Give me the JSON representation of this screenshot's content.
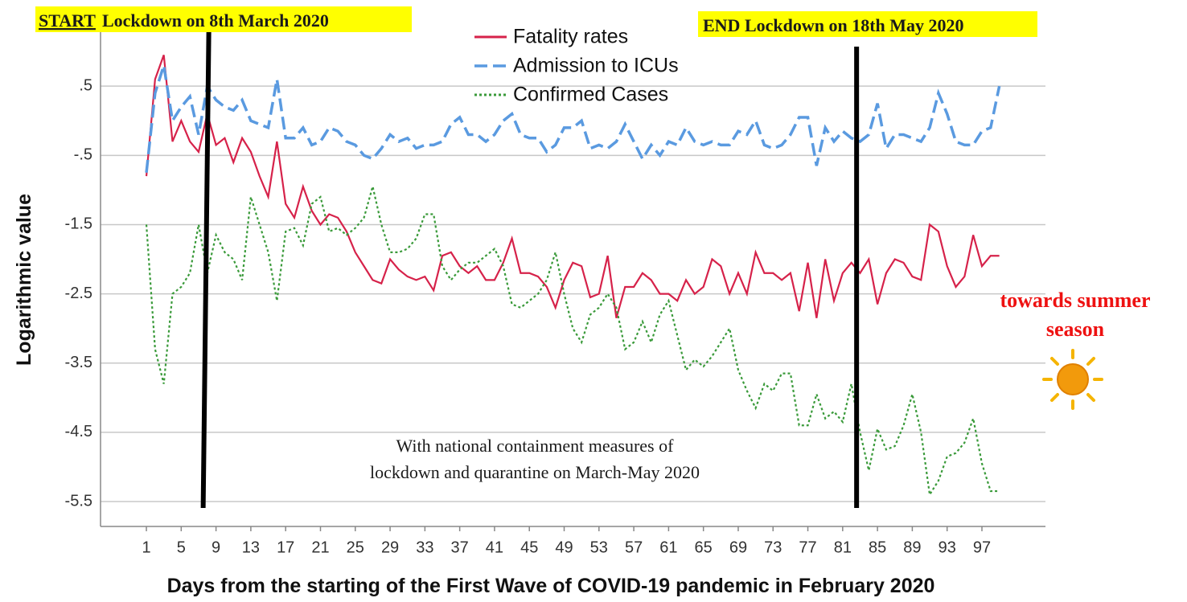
{
  "chart_data": {
    "type": "line",
    "ylabel": "Logarithmic value",
    "xlabel": "Days from the starting of the First Wave of COVID-19 pandemic in February 2020",
    "x": [
      1,
      2,
      3,
      4,
      5,
      6,
      7,
      8,
      9,
      10,
      11,
      12,
      13,
      14,
      15,
      16,
      17,
      18,
      19,
      20,
      21,
      22,
      23,
      24,
      25,
      26,
      27,
      28,
      29,
      30,
      31,
      32,
      33,
      34,
      35,
      36,
      37,
      38,
      39,
      40,
      41,
      42,
      43,
      44,
      45,
      46,
      47,
      48,
      49,
      50,
      51,
      52,
      53,
      54,
      55,
      56,
      57,
      58,
      59,
      60,
      61,
      62,
      63,
      64,
      65,
      66,
      67,
      68,
      69,
      70,
      71,
      72,
      73,
      74,
      75,
      76,
      77,
      78,
      79,
      80,
      81,
      82,
      83,
      84,
      85,
      86,
      87,
      88,
      89,
      90,
      91,
      92,
      93,
      94,
      95,
      96,
      97,
      98,
      99
    ],
    "series": [
      {
        "name": "Fatality rates",
        "color": "#d6224a",
        "style": "solid",
        "values": [
          -0.8,
          0.6,
          0.95,
          -0.3,
          0.0,
          -0.3,
          -0.45,
          0.1,
          -0.35,
          -0.25,
          -0.6,
          -0.25,
          -0.45,
          -0.8,
          -1.1,
          -0.3,
          -1.2,
          -1.4,
          -0.95,
          -1.3,
          -1.5,
          -1.35,
          -1.4,
          -1.6,
          -1.9,
          -2.1,
          -2.3,
          -2.35,
          -2.0,
          -2.15,
          -2.25,
          -2.3,
          -2.25,
          -2.45,
          -1.95,
          -1.9,
          -2.1,
          -2.2,
          -2.1,
          -2.3,
          -2.3,
          -2.05,
          -1.7,
          -2.2,
          -2.2,
          -2.25,
          -2.4,
          -2.7,
          -2.3,
          -2.05,
          -2.1,
          -2.55,
          -2.5,
          -1.95,
          -2.85,
          -2.4,
          -2.4,
          -2.2,
          -2.3,
          -2.5,
          -2.5,
          -2.6,
          -2.3,
          -2.5,
          -2.4,
          -2.0,
          -2.1,
          -2.5,
          -2.2,
          -2.5,
          -1.9,
          -2.2,
          -2.2,
          -2.3,
          -2.2,
          -2.75,
          -2.05,
          -2.85,
          -2.0,
          -2.6,
          -2.2,
          -2.05,
          -2.2,
          -2.0,
          -2.65,
          -2.2,
          -2.0,
          -2.05,
          -2.25,
          -2.3,
          -1.5,
          -1.6,
          -2.1,
          -2.4,
          -2.25,
          -1.65,
          -2.1,
          -1.95,
          -1.95
        ]
      },
      {
        "name": "Admission to ICUs",
        "color": "#5a9ae0",
        "style": "dashed",
        "values": [
          -0.75,
          0.4,
          0.8,
          0.0,
          0.2,
          0.35,
          -0.2,
          0.5,
          0.3,
          0.2,
          0.15,
          0.3,
          0.0,
          -0.05,
          -0.1,
          0.6,
          -0.25,
          -0.25,
          -0.1,
          -0.35,
          -0.3,
          -0.1,
          -0.15,
          -0.3,
          -0.35,
          -0.5,
          -0.55,
          -0.4,
          -0.2,
          -0.3,
          -0.25,
          -0.4,
          -0.35,
          -0.35,
          -0.3,
          -0.05,
          0.05,
          -0.2,
          -0.2,
          -0.3,
          -0.2,
          0.0,
          0.1,
          -0.2,
          -0.25,
          -0.25,
          -0.45,
          -0.35,
          -0.1,
          -0.1,
          0.0,
          -0.4,
          -0.35,
          -0.4,
          -0.3,
          -0.05,
          -0.3,
          -0.55,
          -0.35,
          -0.5,
          -0.3,
          -0.35,
          -0.1,
          -0.3,
          -0.35,
          -0.3,
          -0.35,
          -0.35,
          -0.15,
          -0.2,
          0.0,
          -0.35,
          -0.4,
          -0.35,
          -0.2,
          0.05,
          0.05,
          -0.65,
          -0.1,
          -0.3,
          -0.15,
          -0.25,
          -0.3,
          -0.2,
          0.25,
          -0.4,
          -0.2,
          -0.2,
          -0.25,
          -0.3,
          -0.1,
          0.4,
          0.1,
          -0.3,
          -0.35,
          -0.35,
          -0.15,
          -0.1,
          0.5
        ]
      },
      {
        "name": "Confirmed Cases",
        "color": "#3a9a3a",
        "style": "dotted",
        "values": [
          -1.5,
          -3.3,
          -3.8,
          -2.5,
          -2.4,
          -2.2,
          -1.5,
          -2.2,
          -1.65,
          -1.9,
          -2.0,
          -2.3,
          -1.1,
          -1.5,
          -1.9,
          -2.6,
          -1.6,
          -1.55,
          -1.8,
          -1.2,
          -1.1,
          -1.6,
          -1.55,
          -1.65,
          -1.55,
          -1.4,
          -0.95,
          -1.5,
          -1.9,
          -1.9,
          -1.85,
          -1.7,
          -1.35,
          -1.35,
          -2.1,
          -2.3,
          -2.15,
          -2.05,
          -2.05,
          -1.95,
          -1.85,
          -2.1,
          -2.65,
          -2.7,
          -2.6,
          -2.5,
          -2.3,
          -1.9,
          -2.5,
          -3.0,
          -3.2,
          -2.8,
          -2.7,
          -2.5,
          -2.7,
          -3.3,
          -3.2,
          -2.9,
          -3.2,
          -2.8,
          -2.6,
          -3.1,
          -3.6,
          -3.45,
          -3.55,
          -3.4,
          -3.2,
          -3.0,
          -3.6,
          -3.9,
          -4.15,
          -3.8,
          -3.9,
          -3.65,
          -3.65,
          -4.4,
          -4.4,
          -3.95,
          -4.3,
          -4.2,
          -4.35,
          -3.8,
          -4.5,
          -5.05,
          -4.45,
          -4.75,
          -4.7,
          -4.4,
          -3.95,
          -4.5,
          -5.4,
          -5.2,
          -4.85,
          -4.8,
          -4.65,
          -4.3,
          -4.95,
          -5.35,
          -5.35
        ]
      }
    ],
    "xlim": [
      -4.27,
      104.3
    ],
    "ylim": [
      -5.86,
      1.28
    ],
    "xticks": [
      1,
      5,
      9,
      13,
      17,
      21,
      25,
      29,
      33,
      37,
      41,
      45,
      49,
      53,
      57,
      61,
      65,
      69,
      73,
      77,
      81,
      85,
      89,
      93,
      97
    ],
    "yticks": [
      {
        "value": 0.5,
        "label": ".5"
      },
      {
        "value": -0.5,
        "label": "-.5"
      },
      -1.5,
      -2.5,
      -3.5,
      -4.5,
      -5.5
    ],
    "grid": true,
    "legend": "top-center",
    "vlines": [
      7.8,
      82.6
    ],
    "start_annotation": [
      "START",
      "Lockdown on 8th March 2020"
    ],
    "end_annotation": "END Lockdown on 18th May 2020",
    "center_annotation": [
      "With national containment measures of",
      "lockdown and quarantine on March-May 2020"
    ],
    "summer_annotation": [
      "towards summer",
      "season"
    ]
  }
}
